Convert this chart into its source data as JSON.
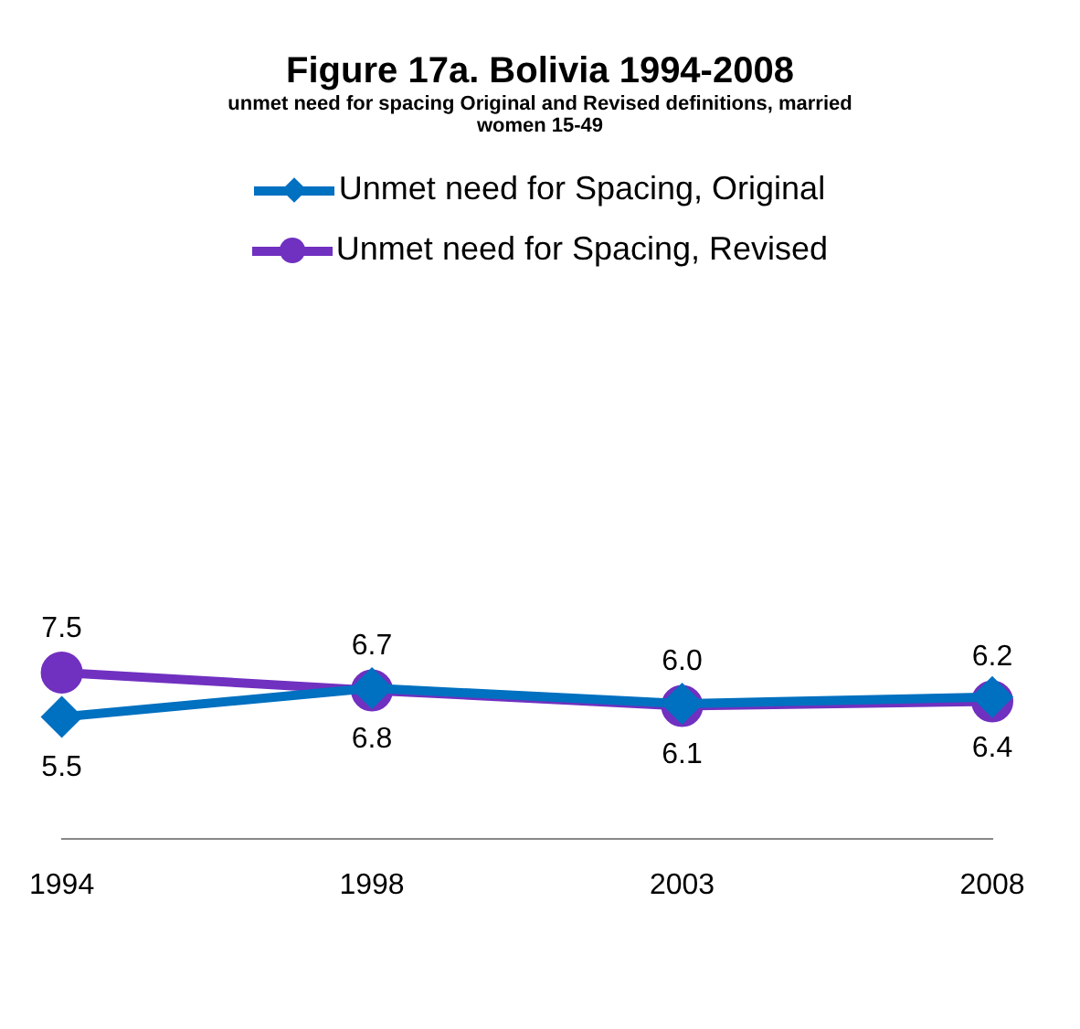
{
  "chart_data": {
    "type": "line",
    "title": "Figure 17a. Bolivia 1994-2008",
    "subtitle": "unmet need for spacing Original and Revised definitions, married women 15-49",
    "categories": [
      "1994",
      "1998",
      "2003",
      "2008"
    ],
    "legend": "top",
    "grid": false,
    "line_style": "solid",
    "series": [
      {
        "name": "Unmet need for Spacing, Original",
        "color": "#0070c0",
        "marker": "diamond",
        "values": [
          5.5,
          6.8,
          6.1,
          6.4
        ],
        "value_labels": [
          "5.5",
          "6.8",
          "6.1",
          "6.4"
        ]
      },
      {
        "name": "Unmet need for Spacing, Revised",
        "color": "#7030c0",
        "marker": "circle",
        "values": [
          7.5,
          6.7,
          6.0,
          6.2
        ],
        "value_labels": [
          "7.5",
          "6.7",
          "6.0",
          "6.2"
        ]
      }
    ]
  }
}
